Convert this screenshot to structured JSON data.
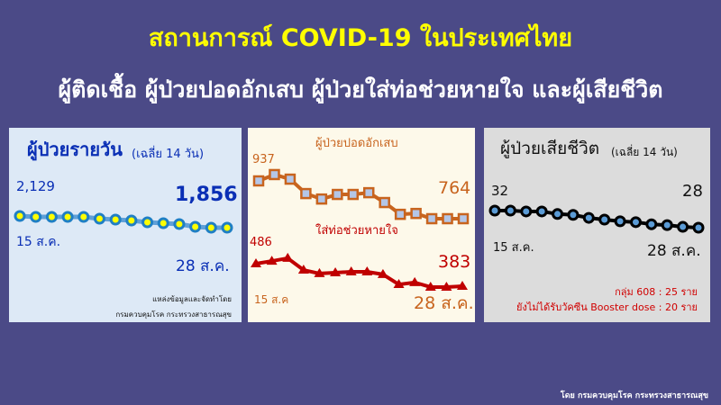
{
  "header": {
    "title": "สถานการณ์ COVID-19 ในประเทศไทย",
    "subtitle": "ผู้ติดเชื้อ ผู้ป่วยปอดอักเสบ ผู้ป่วยใส่ท่อช่วยหายใจ และผู้เสียชีวิต"
  },
  "panels": {
    "daily": {
      "title": "ผู้ป่วยรายวัน",
      "note": "(เฉลี่ย 14 วัน)",
      "start_value": "2,129",
      "end_value": "1,856",
      "start_date": "15 ส.ค.",
      "end_date": "28 ส.ค.",
      "source_line1": "แหล่งข้อมูลและจัดทำโดย",
      "source_line2": "กรมควบคุมโรค กระทรวงสาธารณสุข"
    },
    "severe": {
      "pneumonia_label": "ผู้ป่วยปอดอักเสบ",
      "pneumonia_start": "937",
      "pneumonia_end": "764",
      "ventilator_label": "ใส่ท่อช่วยหายใจ",
      "ventilator_start": "486",
      "ventilator_end": "383",
      "start_date": "15 ส.ค",
      "end_date": "28 ส.ค."
    },
    "deaths": {
      "title": "ผู้ป่วยเสียชีวิต",
      "note": "(เฉลี่ย 14 วัน)",
      "start_value": "32",
      "end_value": "28",
      "start_date": "15 ส.ค.",
      "end_date": "28 ส.ค.",
      "group608": "กลุ่ม 608 : 25 ราย",
      "no_booster": "ยังไม่ได้รับวัคซีน Booster dose : 20 ราย"
    }
  },
  "footer": "โดย กรมควบคุมโรค กระทรวงสาธารณสุข",
  "colors": {
    "background": "#4b4a87",
    "title": "#ffff00",
    "daily": "#1f7fc4",
    "pneumonia": "#c8641e",
    "ventilator": "#c00000",
    "deaths": "#000000"
  },
  "chart_data": [
    {
      "type": "line",
      "name": "ผู้ป่วยรายวัน",
      "x_range": [
        "15 ส.ค.",
        "28 ส.ค."
      ],
      "values": [
        2129,
        2108,
        2108,
        2108,
        2108,
        2066,
        2045,
        2024,
        1982,
        1961,
        1940,
        1877,
        1856,
        1856
      ],
      "marker": "circle"
    },
    {
      "type": "line",
      "name": "ผู้ป่วยปอดอักเสบ",
      "x_range": [
        "15 ส.ค",
        "28 ส.ค."
      ],
      "values": [
        937,
        966,
        945,
        879,
        854,
        875,
        875,
        883,
        838,
        784,
        788,
        764,
        764,
        764
      ],
      "marker": "square"
    },
    {
      "type": "line",
      "name": "ใส่ท่อช่วยหายใจ",
      "x_range": [
        "15 ส.ค",
        "28 ส.ค."
      ],
      "values": [
        486,
        498,
        511,
        457,
        441,
        445,
        449,
        449,
        437,
        391,
        400,
        379,
        379,
        383
      ],
      "marker": "triangle"
    },
    {
      "type": "line",
      "name": "ผู้ป่วยเสียชีวิต",
      "x_range": [
        "15 ส.ค.",
        "28 ส.ค."
      ],
      "values": [
        32,
        32,
        31.8,
        31.8,
        31.2,
        31,
        30.3,
        29.9,
        29.5,
        29.3,
        28.8,
        28.6,
        28.2,
        28
      ],
      "marker": "circle"
    }
  ]
}
